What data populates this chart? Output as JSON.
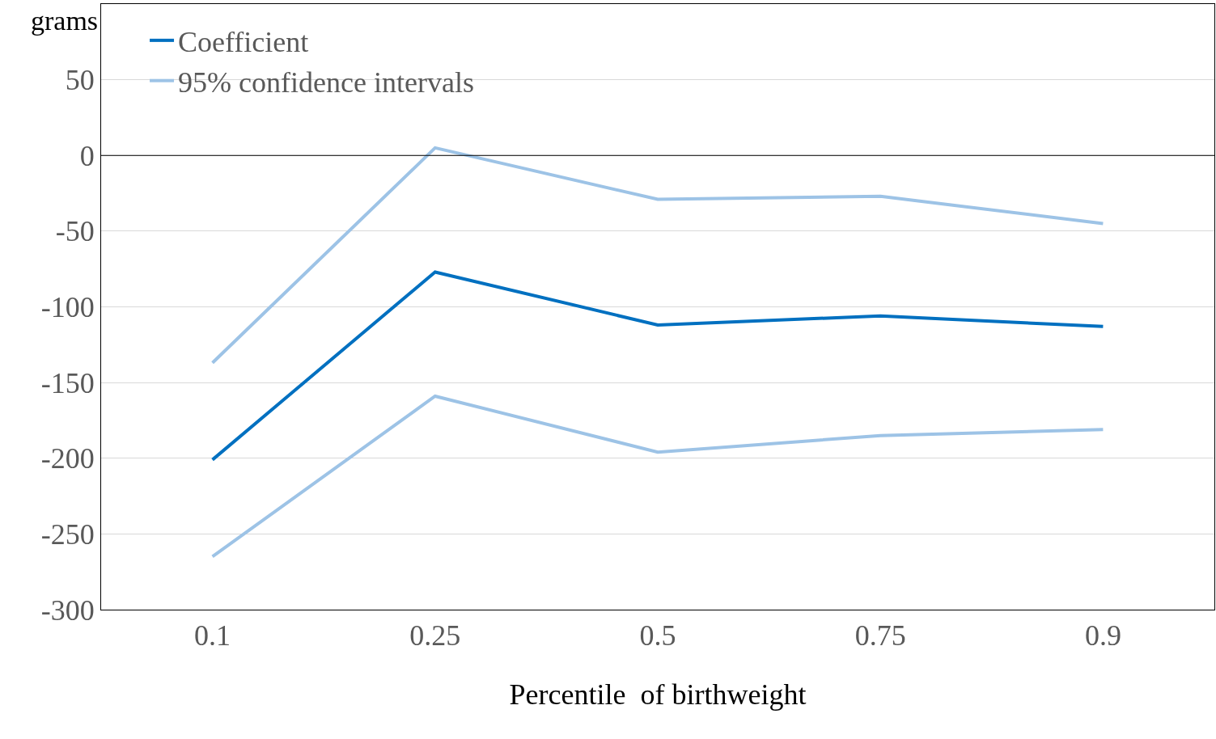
{
  "chart_data": {
    "type": "line",
    "xlabel": "Percentile  of birthweight",
    "ylabel": "grams",
    "categories": [
      "0.1",
      "0.25",
      "0.5",
      "0.75",
      "0.9"
    ],
    "series": [
      {
        "name": "Coefficient",
        "color": "#0070c0",
        "values": [
          -201,
          -77,
          -112,
          -106,
          -113
        ]
      },
      {
        "name": "95% confidence intervals",
        "color": "#9dc3e6",
        "values": [
          -137,
          5,
          -29,
          -27,
          -45
        ]
      },
      {
        "color": "#9dc3e6",
        "values": [
          -265,
          -159,
          -196,
          -185,
          -181
        ]
      }
    ],
    "ylim": [
      -300,
      100
    ],
    "yticks": [
      -300,
      -250,
      -200,
      -150,
      -100,
      -50,
      0,
      50
    ],
    "ref_lines": [
      {
        "axis": "y",
        "value": 0,
        "color": "#000000"
      }
    ],
    "grid": "y",
    "legend": "top left",
    "marker": "none",
    "line_style": "solid"
  }
}
